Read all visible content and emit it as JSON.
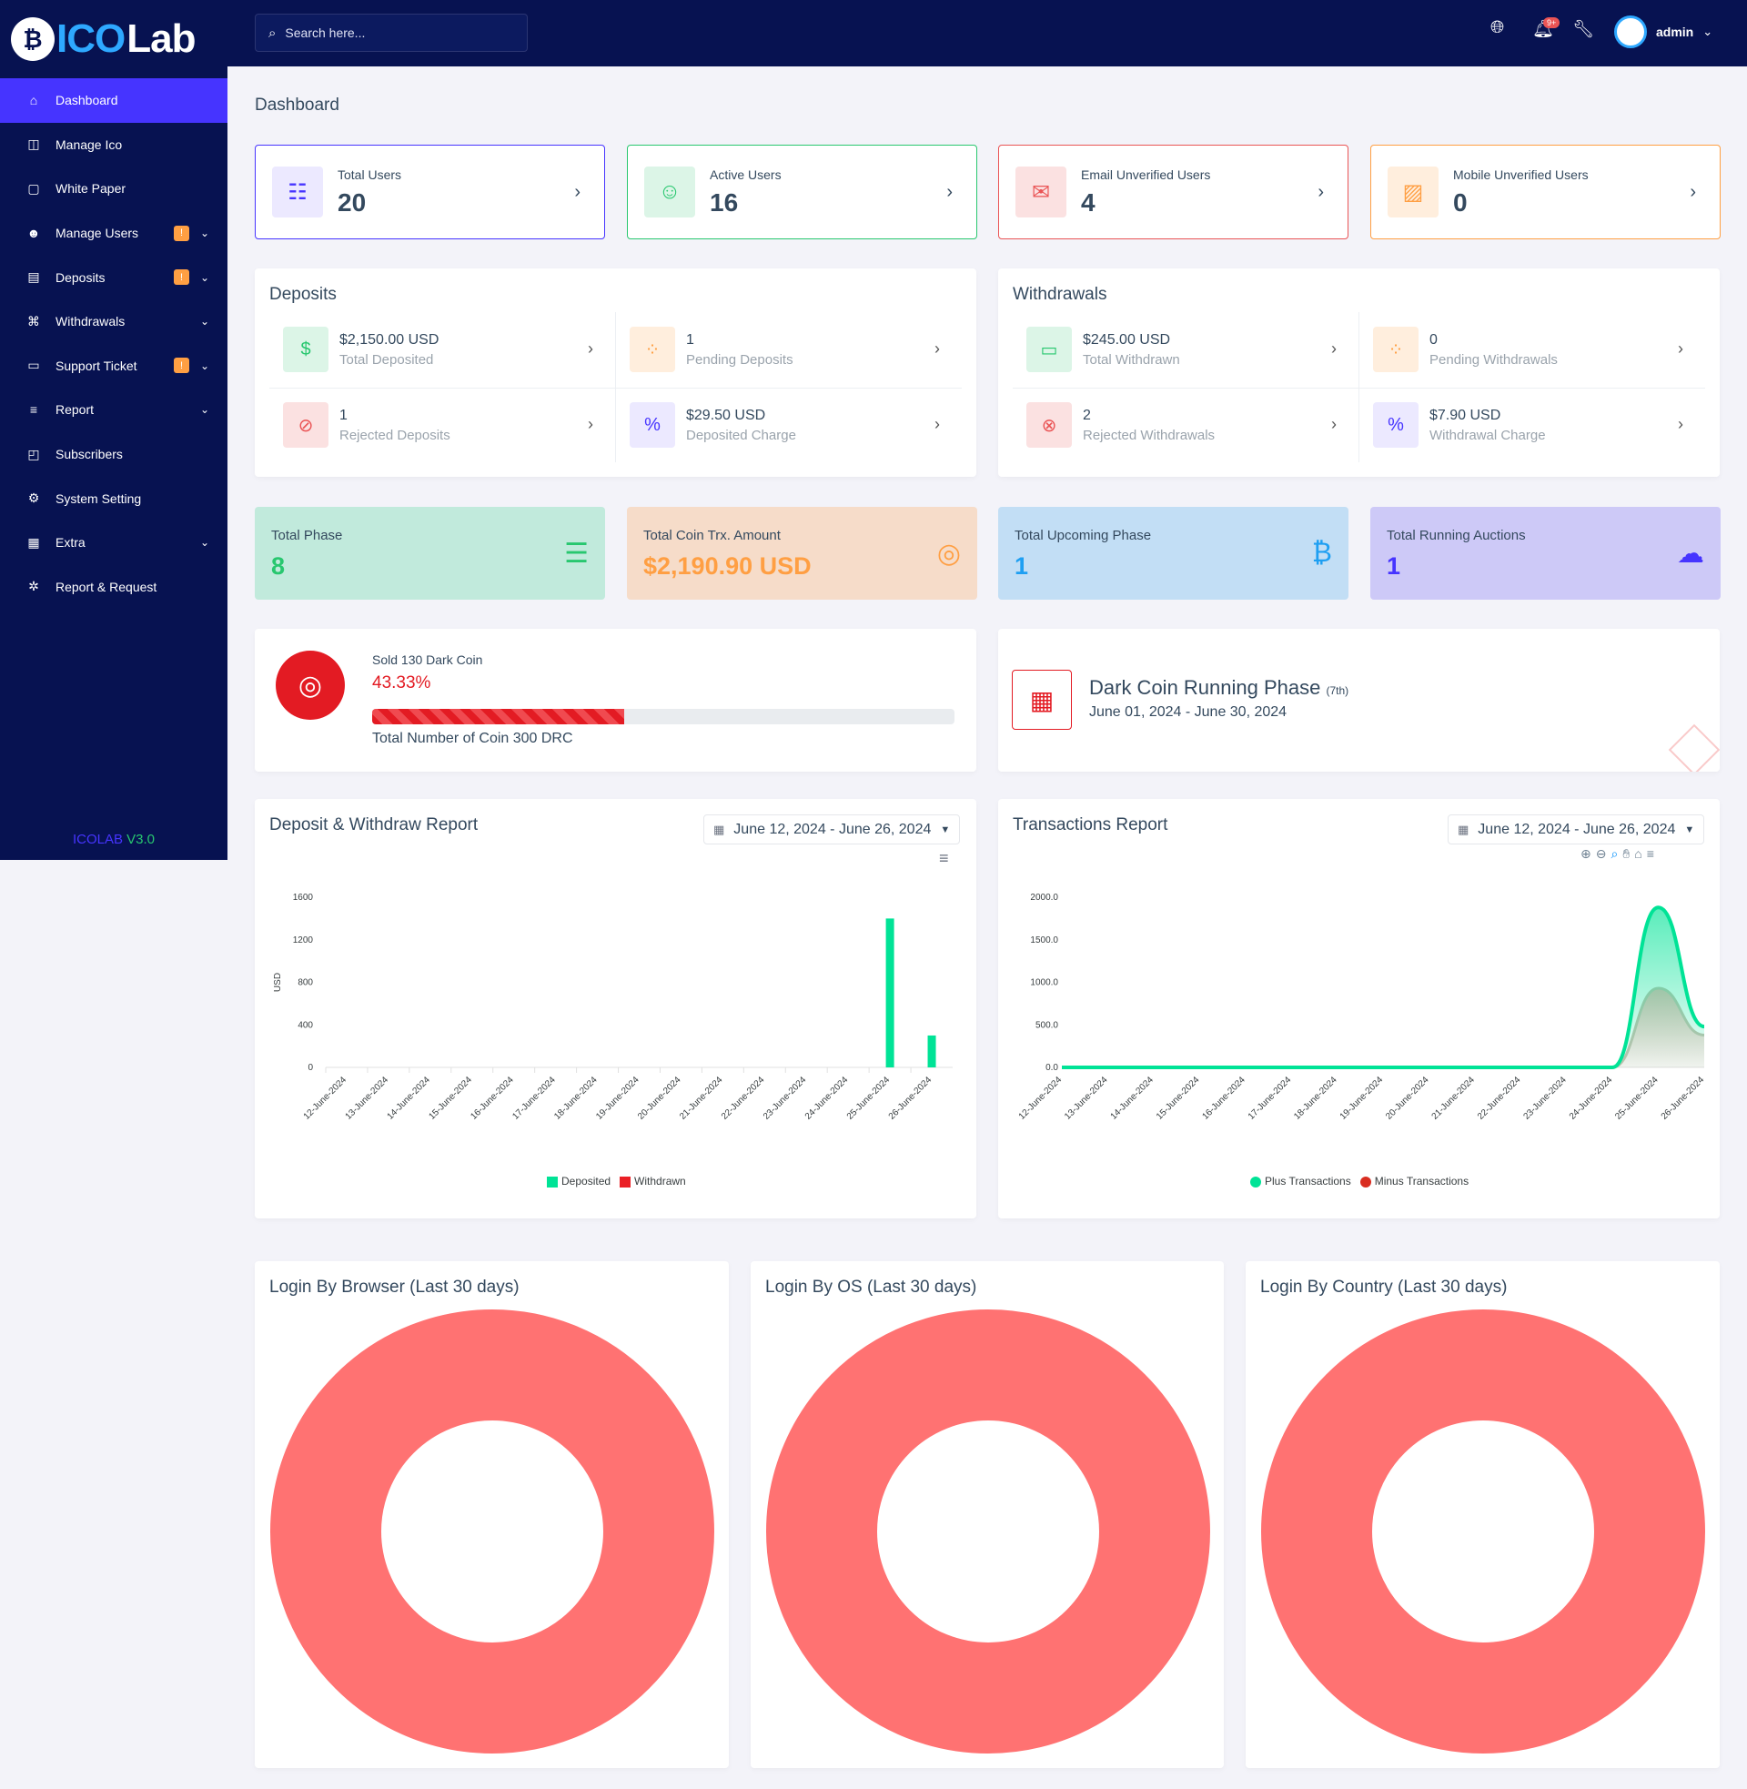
{
  "brand": {
    "mark": "₿",
    "part1": "ICO",
    "part2": "Lab"
  },
  "version": {
    "name": "ICOLAB",
    "number": "V3.0"
  },
  "sidebar": {
    "items": [
      {
        "label": "Dashboard",
        "icon": "home-icon",
        "glyph": "⌂",
        "active": true
      },
      {
        "label": "Manage Ico",
        "icon": "coins-icon",
        "glyph": "◫"
      },
      {
        "label": "White Paper",
        "icon": "paper-icon",
        "glyph": "▢"
      },
      {
        "label": "Manage Users",
        "icon": "users-icon",
        "glyph": "☻",
        "badge": "!",
        "chevron": true
      },
      {
        "label": "Deposits",
        "icon": "file-dollar-icon",
        "glyph": "▤",
        "badge": "!",
        "chevron": true
      },
      {
        "label": "Withdrawals",
        "icon": "bank-icon",
        "glyph": "⌘",
        "chevron": true
      },
      {
        "label": "Support Ticket",
        "icon": "ticket-icon",
        "glyph": "▭",
        "badge": "!",
        "chevron": true
      },
      {
        "label": "Report",
        "icon": "list-icon",
        "glyph": "≡",
        "chevron": true
      },
      {
        "label": "Subscribers",
        "icon": "thumbs-up-icon",
        "glyph": "◰"
      },
      {
        "label": "System Setting",
        "icon": "gear-icon",
        "glyph": "⚙"
      },
      {
        "label": "Extra",
        "icon": "server-icon",
        "glyph": "▦",
        "chevron": true
      },
      {
        "label": "Report & Request",
        "icon": "bug-icon",
        "glyph": "✲"
      }
    ]
  },
  "topbar": {
    "search_placeholder": "Search here...",
    "notif_count": "9+",
    "user": "admin"
  },
  "page_title": "Dashboard",
  "widgets": [
    {
      "label": "Total Users",
      "value": "20",
      "color": "#4634ff",
      "bg": "#ece9ff",
      "icon": "users-icon",
      "glyph": "☷"
    },
    {
      "label": "Active Users",
      "value": "16",
      "color": "#28c76f",
      "bg": "#dcf5e7",
      "icon": "user-check-icon",
      "glyph": "☺"
    },
    {
      "label": "Email Unverified Users",
      "value": "4",
      "color": "#ea5455",
      "bg": "#fbe1e1",
      "icon": "envelope-icon",
      "glyph": "✉"
    },
    {
      "label": "Mobile Unverified Users",
      "value": "0",
      "color": "#ff9f43",
      "bg": "#ffeedd",
      "icon": "mobile-off-icon",
      "glyph": "▨"
    }
  ],
  "deposits": {
    "title": "Deposits",
    "items": [
      {
        "value": "$2,150.00 USD",
        "label": "Total Deposited",
        "color": "#28c76f",
        "bg": "#dcf5e7",
        "icon": "hand-dollar-icon",
        "glyph": "$"
      },
      {
        "value": "1",
        "label": "Pending Deposits",
        "color": "#ff9f43",
        "bg": "#ffeedd",
        "icon": "spinner-icon",
        "glyph": "⁘"
      },
      {
        "value": "1",
        "label": "Rejected Deposits",
        "color": "#ea5455",
        "bg": "#fbe1e1",
        "icon": "ban-icon",
        "glyph": "⊘"
      },
      {
        "value": "$29.50 USD",
        "label": "Deposited Charge",
        "color": "#4634ff",
        "bg": "#ece9ff",
        "icon": "percent-icon",
        "glyph": "%"
      }
    ]
  },
  "withdrawals": {
    "title": "Withdrawals",
    "items": [
      {
        "value": "$245.00 USD",
        "label": "Total Withdrawn",
        "color": "#28c76f",
        "bg": "#dcf5e7",
        "icon": "card-icon",
        "glyph": "▭"
      },
      {
        "value": "0",
        "label": "Pending Withdrawals",
        "color": "#ff9f43",
        "bg": "#ffeedd",
        "icon": "spinner-icon",
        "glyph": "⁘"
      },
      {
        "value": "2",
        "label": "Rejected Withdrawals",
        "color": "#ea5455",
        "bg": "#fbe1e1",
        "icon": "x-circle-icon",
        "glyph": "⊗"
      },
      {
        "value": "$7.90 USD",
        "label": "Withdrawal Charge",
        "color": "#4634ff",
        "bg": "#ece9ff",
        "icon": "percent-icon",
        "glyph": "%"
      }
    ]
  },
  "phases": [
    {
      "label": "Total Phase",
      "value": "8",
      "bg": "#c1eadc",
      "color": "#28c76f",
      "icon": "server-icon",
      "glyph": "☰"
    },
    {
      "label": "Total Coin Trx. Amount",
      "value": "$2,190.90 USD",
      "bg": "#f6dcc9",
      "color": "#ff9f43",
      "icon": "coins-icon",
      "glyph": "◎"
    },
    {
      "label": "Total Upcoming Phase",
      "value": "1",
      "bg": "#c2def5",
      "color": "#1e9ff2",
      "icon": "bitcoin-icon",
      "glyph": "₿"
    },
    {
      "label": "Total Running Auctions",
      "value": "1",
      "bg": "#cdc9f7",
      "color": "#4634ff",
      "icon": "cloud-chart-icon",
      "glyph": "☁"
    }
  ],
  "sold": {
    "title": "Sold 130 Dark Coin",
    "percent_label": "43.33%",
    "percent": 43.33,
    "total": "Total Number of Coin 300 DRC"
  },
  "running_phase": {
    "title": "Dark Coin Running Phase",
    "tag": "(7th)",
    "dates": "June 01, 2024 - June 30, 2024"
  },
  "deposit_report": {
    "title": "Deposit & Withdraw Report",
    "range": "June 12, 2024 - June 26, 2024"
  },
  "transactions_report": {
    "title": "Transactions Report",
    "range": "June 12, 2024 - June 26, 2024"
  },
  "login_browser": {
    "title": "Login By Browser (Last 30 days)"
  },
  "login_os": {
    "title": "Login By OS (Last 30 days)"
  },
  "login_country": {
    "title": "Login By Country (Last 30 days)"
  },
  "chart_data": [
    {
      "type": "bar",
      "title": "Deposit & Withdraw Report",
      "ylabel": "USD",
      "ylim": [
        0,
        1600
      ],
      "yticks": [
        "0",
        "400",
        "800",
        "1200",
        "1600"
      ],
      "categories": [
        "12-June-2024",
        "13-June-2024",
        "14-June-2024",
        "15-June-2024",
        "16-June-2024",
        "17-June-2024",
        "18-June-2024",
        "19-June-2024",
        "20-June-2024",
        "21-June-2024",
        "22-June-2024",
        "23-June-2024",
        "24-June-2024",
        "25-June-2024",
        "26-June-2024"
      ],
      "series": [
        {
          "name": "Deposited",
          "color": "#00e396",
          "values": [
            0,
            0,
            0,
            0,
            0,
            0,
            0,
            0,
            0,
            0,
            0,
            0,
            0,
            1400,
            300
          ]
        },
        {
          "name": "Withdrawn",
          "color": "#ea1f25",
          "values": [
            0,
            0,
            0,
            0,
            0,
            0,
            0,
            0,
            0,
            0,
            0,
            0,
            0,
            0,
            0
          ]
        }
      ],
      "legend": "bottom"
    },
    {
      "type": "area",
      "title": "Transactions Report",
      "ylim": [
        0,
        2000
      ],
      "yticks": [
        "0.0",
        "500.0",
        "1000.0",
        "1500.0",
        "2000.0"
      ],
      "categories": [
        "12-June-2024",
        "13-June-2024",
        "14-June-2024",
        "15-June-2024",
        "16-June-2024",
        "17-June-2024",
        "18-June-2024",
        "19-June-2024",
        "20-June-2024",
        "21-June-2024",
        "22-June-2024",
        "23-June-2024",
        "24-June-2024",
        "25-June-2024",
        "26-June-2024"
      ],
      "series": [
        {
          "name": "Plus Transactions",
          "color": "#00e396",
          "values": [
            0,
            0,
            0,
            0,
            0,
            0,
            0,
            0,
            0,
            0,
            0,
            0,
            0,
            1880,
            480
          ]
        },
        {
          "name": "Minus Transactions",
          "color": "#d92d20",
          "values": [
            0,
            0,
            0,
            0,
            0,
            0,
            0,
            0,
            0,
            0,
            0,
            0,
            0,
            930,
            380
          ]
        }
      ],
      "legend": "bottom"
    },
    {
      "type": "pie",
      "title": "Login By Browser (Last 30 days)",
      "slices": [
        {
          "value": 100,
          "color": "#ff7272"
        }
      ]
    },
    {
      "type": "pie",
      "title": "Login By OS (Last 30 days)",
      "slices": [
        {
          "value": 100,
          "color": "#ff7272"
        }
      ]
    },
    {
      "type": "pie",
      "title": "Login By Country (Last 30 days)",
      "slices": [
        {
          "value": 100,
          "color": "#ff7272"
        }
      ]
    }
  ]
}
